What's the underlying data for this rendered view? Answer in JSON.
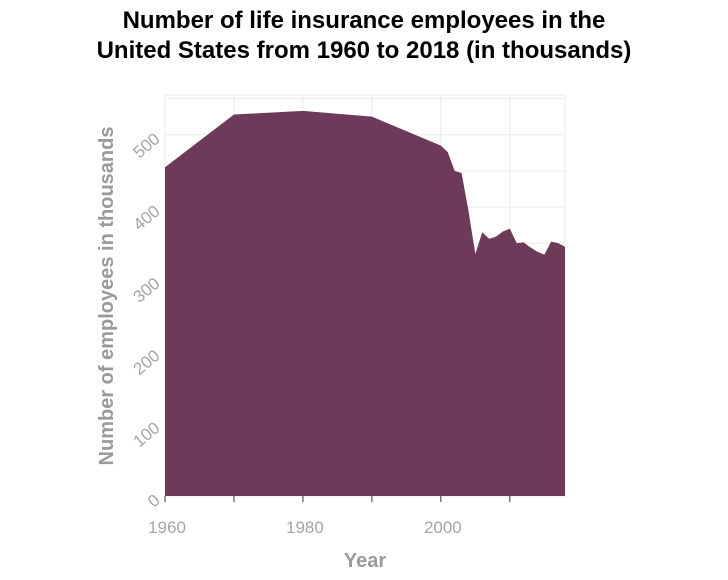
{
  "chart_data": {
    "type": "area",
    "title_lines": [
      "Number of life insurance employees in the",
      "United States from 1960 to 2018 (in thousands)"
    ],
    "xlabel": "Year",
    "ylabel": "Number of employees in thousands",
    "x_ticks": [
      1960,
      1980,
      2000
    ],
    "y_ticks": [
      0,
      100,
      200,
      300,
      400,
      500
    ],
    "xlim": [
      1960,
      2018
    ],
    "ylim": [
      0,
      555
    ],
    "grid": true,
    "color": "#6e3a5a",
    "x": [
      1960,
      1970,
      1980,
      1990,
      2000,
      2001,
      2002,
      2003,
      2004,
      2005,
      2006,
      2007,
      2008,
      2009,
      2010,
      2011,
      2012,
      2013,
      2014,
      2015,
      2016,
      2017,
      2018
    ],
    "values": [
      455,
      528,
      533,
      525,
      485,
      476,
      450,
      447,
      395,
      335,
      365,
      356,
      359,
      366,
      370,
      350,
      351,
      344,
      338,
      334,
      352,
      350,
      345
    ]
  }
}
